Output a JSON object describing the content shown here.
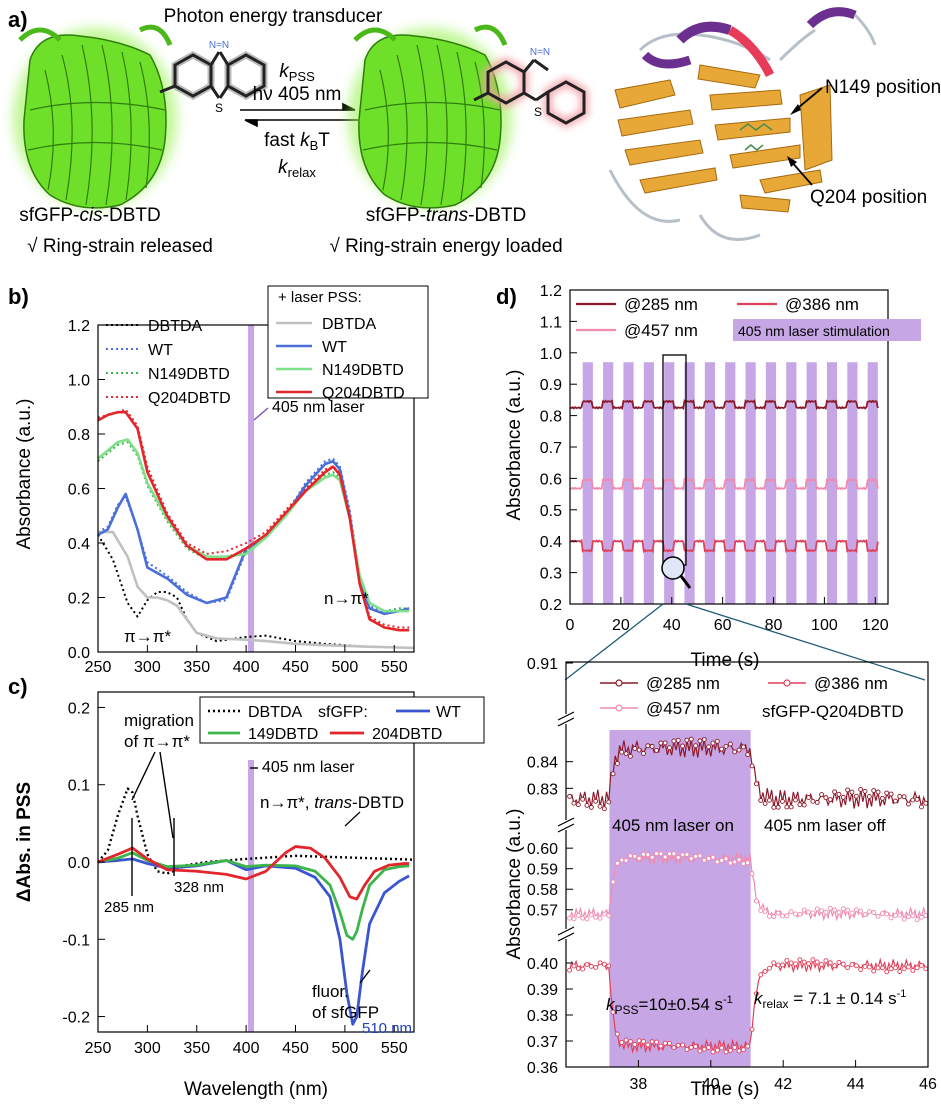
{
  "figure": {
    "panels": {
      "a": "a)",
      "b": "b)",
      "c": "c)",
      "d": "d)"
    },
    "panel_a": {
      "title": "Photon energy transducer",
      "k_pss": "k",
      "k_pss_sub": "PSS",
      "hv": "hν 405 nm",
      "fast": "fast ",
      "kB": "k",
      "kB_sub": "B",
      "T": "T",
      "k_relax": "k",
      "k_relax_sub": "relax",
      "left_name_pre": "sfGFP-",
      "left_name_it": "cis",
      "left_name_post": "-DBTD",
      "right_name_pre": "sfGFP-",
      "right_name_it": "trans",
      "right_name_post": "-DBTD",
      "left_note": "√ Ring-strain released",
      "right_note": "√ Ring-strain energy loaded",
      "n149": "N149 position",
      "q204": "Q204 position",
      "atom_S": "S",
      "atom_N": "N=N"
    },
    "colors": {
      "dbtda": "#000000",
      "wt": "#4a6fd8",
      "n149": "#3cb54a",
      "q204": "#e3262c",
      "dbtda_pss": "#c0c0c0",
      "n149_pss": "#7fe08a",
      "laser": "#c7a6e6",
      "c285": "#8b1a2a",
      "c386": "#e0405a",
      "c457": "#f08ab0",
      "gfp": "#7ae52a"
    }
  },
  "chart_data": [
    {
      "id": "b",
      "type": "line",
      "xlabel": "",
      "ylabel": "Absorbance (a.u.)",
      "xlim": [
        250,
        570
      ],
      "ylim": [
        0.0,
        1.2
      ],
      "xticks": [
        250,
        300,
        350,
        400,
        450,
        500,
        550
      ],
      "yticks": [
        0.0,
        0.2,
        0.4,
        0.6,
        0.8,
        1.0,
        1.2
      ],
      "legend_dark": [
        "DBTDA",
        "WT",
        "N149DBTD",
        "Q204DBTD"
      ],
      "legend_pss_title": "+ laser  PSS:",
      "legend_pss": [
        "DBTDA",
        "WT",
        "N149DBTD",
        "Q204DBTD"
      ],
      "annotations": [
        "405 nm laser",
        "π→π*",
        "n→π*"
      ],
      "laser_nm": 405,
      "series": [
        {
          "name": "DBTDA",
          "style": "dot",
          "color": "#000000",
          "x": [
            250,
            265,
            280,
            290,
            300,
            310,
            320,
            330,
            340,
            350,
            370,
            400,
            420,
            450,
            480,
            520,
            570
          ],
          "y": [
            0.43,
            0.34,
            0.18,
            0.13,
            0.19,
            0.22,
            0.22,
            0.2,
            0.12,
            0.07,
            0.04,
            0.055,
            0.06,
            0.04,
            0.03,
            0.02,
            0.015
          ]
        },
        {
          "name": "WT",
          "style": "dot",
          "color": "#4a6fd8",
          "x": [
            250,
            260,
            270,
            278,
            290,
            300,
            320,
            340,
            360,
            380,
            400,
            420,
            440,
            460,
            480,
            488,
            495,
            505,
            515,
            525,
            540,
            555,
            565
          ],
          "y": [
            0.44,
            0.46,
            0.54,
            0.57,
            0.45,
            0.33,
            0.28,
            0.22,
            0.18,
            0.19,
            0.37,
            0.42,
            0.5,
            0.62,
            0.7,
            0.71,
            0.68,
            0.52,
            0.28,
            0.17,
            0.14,
            0.15,
            0.16
          ]
        },
        {
          "name": "N149DBTD",
          "style": "dot",
          "color": "#3cb54a",
          "x": [
            250,
            260,
            270,
            280,
            290,
            300,
            320,
            340,
            360,
            380,
            400,
            420,
            440,
            460,
            480,
            488,
            495,
            505,
            515,
            525,
            540,
            555,
            565
          ],
          "y": [
            0.7,
            0.73,
            0.76,
            0.77,
            0.72,
            0.61,
            0.48,
            0.38,
            0.34,
            0.35,
            0.37,
            0.43,
            0.51,
            0.6,
            0.65,
            0.66,
            0.64,
            0.5,
            0.28,
            0.18,
            0.15,
            0.16,
            0.16
          ]
        },
        {
          "name": "Q204DBTD",
          "style": "dot",
          "color": "#e3262c",
          "x": [
            250,
            260,
            270,
            278,
            290,
            300,
            320,
            340,
            360,
            380,
            400,
            420,
            440,
            460,
            480,
            488,
            495,
            505,
            515,
            525,
            540,
            555,
            565
          ],
          "y": [
            0.86,
            0.87,
            0.88,
            0.89,
            0.83,
            0.68,
            0.51,
            0.4,
            0.36,
            0.37,
            0.4,
            0.44,
            0.52,
            0.6,
            0.67,
            0.68,
            0.66,
            0.5,
            0.26,
            0.13,
            0.1,
            0.09,
            0.09
          ]
        },
        {
          "name": "DBTDA",
          "style": "solid",
          "color": "#c0c0c0",
          "x": [
            250,
            265,
            280,
            290,
            300,
            310,
            320,
            330,
            340,
            350,
            370,
            400,
            420,
            450,
            480,
            520,
            570
          ],
          "y": [
            0.44,
            0.44,
            0.35,
            0.24,
            0.2,
            0.2,
            0.19,
            0.17,
            0.12,
            0.07,
            0.05,
            0.045,
            0.04,
            0.03,
            0.025,
            0.02,
            0.015
          ]
        },
        {
          "name": "WT",
          "style": "solid",
          "color": "#4a6fd8",
          "x": [
            250,
            260,
            270,
            278,
            290,
            300,
            320,
            340,
            360,
            380,
            400,
            420,
            440,
            460,
            480,
            488,
            495,
            505,
            515,
            525,
            540,
            555,
            565
          ],
          "y": [
            0.43,
            0.45,
            0.53,
            0.58,
            0.45,
            0.31,
            0.27,
            0.21,
            0.18,
            0.2,
            0.38,
            0.42,
            0.5,
            0.61,
            0.69,
            0.7,
            0.67,
            0.5,
            0.26,
            0.16,
            0.14,
            0.15,
            0.16
          ]
        },
        {
          "name": "N149DBTD",
          "style": "solid",
          "color": "#7fe08a",
          "x": [
            250,
            260,
            270,
            280,
            290,
            300,
            320,
            340,
            360,
            380,
            400,
            420,
            440,
            460,
            480,
            488,
            495,
            505,
            515,
            525,
            540,
            555,
            565
          ],
          "y": [
            0.71,
            0.74,
            0.77,
            0.78,
            0.73,
            0.62,
            0.49,
            0.39,
            0.35,
            0.35,
            0.36,
            0.42,
            0.5,
            0.59,
            0.64,
            0.65,
            0.63,
            0.49,
            0.28,
            0.18,
            0.15,
            0.15,
            0.15
          ]
        },
        {
          "name": "Q204DBTD",
          "style": "solid",
          "color": "#e3262c",
          "x": [
            250,
            260,
            270,
            278,
            290,
            300,
            320,
            340,
            360,
            380,
            400,
            420,
            440,
            460,
            480,
            488,
            495,
            505,
            515,
            525,
            540,
            555,
            565
          ],
          "y": [
            0.85,
            0.87,
            0.88,
            0.88,
            0.82,
            0.66,
            0.5,
            0.39,
            0.34,
            0.34,
            0.38,
            0.43,
            0.51,
            0.59,
            0.66,
            0.68,
            0.65,
            0.49,
            0.25,
            0.12,
            0.09,
            0.08,
            0.08
          ]
        }
      ]
    },
    {
      "id": "c",
      "type": "line",
      "xlabel": "Wavelength (nm)",
      "ylabel": "ΔAbs. in PSS",
      "xlim": [
        250,
        570
      ],
      "ylim": [
        -0.22,
        0.22
      ],
      "xticks": [
        250,
        300,
        350,
        400,
        450,
        500,
        550
      ],
      "yticks": [
        -0.2,
        -0.1,
        0.0,
        0.1,
        0.2
      ],
      "legend": [
        "DBTDA",
        "sfGFP:",
        "WT",
        "149DBTD",
        "204DBTD"
      ],
      "annotations": [
        "migration",
        "of π→π*",
        "405 nm laser",
        "n→π*, trans-DBTD",
        "285 nm",
        "328 nm",
        "fluor.",
        "of sfGFP",
        "510 nm"
      ],
      "laser_nm": 405,
      "series": [
        {
          "name": "DBTDA",
          "style": "dot",
          "color": "#000000",
          "x": [
            250,
            260,
            270,
            280,
            285,
            290,
            300,
            310,
            320,
            330,
            340,
            360,
            380,
            400,
            450,
            500,
            570
          ],
          "y": [
            0.0,
            0.015,
            0.06,
            0.095,
            0.09,
            0.06,
            0.01,
            -0.012,
            -0.015,
            -0.01,
            -0.004,
            0.0,
            0.002,
            0.004,
            0.008,
            0.006,
            0.003
          ]
        },
        {
          "name": "WT",
          "style": "solid",
          "color": "#3a55d0",
          "x": [
            250,
            270,
            285,
            300,
            320,
            350,
            380,
            400,
            420,
            450,
            470,
            485,
            495,
            502,
            508,
            512,
            518,
            525,
            540,
            555,
            565
          ],
          "y": [
            0.0,
            0.002,
            0.004,
            -0.002,
            -0.008,
            -0.005,
            0.002,
            -0.01,
            -0.005,
            -0.008,
            -0.02,
            -0.045,
            -0.1,
            -0.17,
            -0.21,
            -0.2,
            -0.14,
            -0.08,
            -0.04,
            -0.025,
            -0.018
          ]
        },
        {
          "name": "149DBTD",
          "style": "solid",
          "color": "#3cb54a",
          "x": [
            250,
            270,
            285,
            300,
            320,
            350,
            380,
            400,
            420,
            450,
            470,
            485,
            495,
            502,
            508,
            512,
            518,
            525,
            540,
            555,
            565
          ],
          "y": [
            0.0,
            0.005,
            0.012,
            0.002,
            -0.006,
            -0.004,
            0.002,
            -0.006,
            -0.004,
            -0.005,
            -0.012,
            -0.03,
            -0.065,
            -0.095,
            -0.1,
            -0.09,
            -0.06,
            -0.03,
            -0.01,
            -0.006,
            -0.005
          ]
        },
        {
          "name": "204DBTD",
          "style": "solid",
          "color": "#e3262c",
          "x": [
            250,
            270,
            285,
            300,
            320,
            350,
            380,
            400,
            420,
            440,
            450,
            465,
            480,
            495,
            505,
            512,
            520,
            530,
            545,
            560,
            565
          ],
          "y": [
            0.0,
            0.01,
            0.018,
            0.004,
            -0.01,
            -0.012,
            -0.016,
            -0.022,
            -0.012,
            0.012,
            0.02,
            0.018,
            0.005,
            -0.02,
            -0.045,
            -0.048,
            -0.03,
            -0.012,
            -0.004,
            -0.002,
            -0.002
          ]
        }
      ]
    },
    {
      "id": "d-top",
      "type": "line",
      "xlabel": "Time (s)",
      "ylabel": "Absorbance (a.u.)",
      "xlim": [
        0,
        125
      ],
      "ylim": [
        0.2,
        1.2
      ],
      "xticks": [
        0,
        20,
        40,
        60,
        80,
        100,
        120
      ],
      "yticks": [
        0.2,
        0.3,
        0.4,
        0.5,
        0.6,
        0.7,
        0.8,
        0.9,
        1.0,
        1.1,
        1.2
      ],
      "legend": [
        "@285 nm",
        "@386 nm",
        "@457 nm",
        "405 nm laser stimulation"
      ],
      "pulse_period_s": 8,
      "pulse_width_s": 4,
      "pulse_first_start_s": 5,
      "pulse_count": 15,
      "pulse_top": 0.97,
      "series": [
        {
          "name": "@285 nm",
          "color": "#8b1a2a",
          "off": 0.825,
          "on": 0.845
        },
        {
          "name": "@457 nm",
          "color": "#f08ab0",
          "off": 0.568,
          "on": 0.595
        },
        {
          "name": "@386 nm",
          "color": "#e0405a",
          "off": 0.4,
          "on": 0.37
        }
      ],
      "zoom_window_s": [
        37,
        45
      ]
    },
    {
      "id": "d-zoom",
      "type": "scatter",
      "xlabel": "Time (s)",
      "ylabel": "Absorbance (a.u.)",
      "xlim": [
        36,
        46
      ],
      "xticks": [
        38,
        40,
        42,
        44,
        46
      ],
      "yticks_top": [
        0.91
      ],
      "yticks_285": [
        0.83,
        0.84
      ],
      "yticks_457": [
        0.57,
        0.58,
        0.59,
        0.6
      ],
      "yticks_386": [
        0.36,
        0.37,
        0.38,
        0.39,
        0.4
      ],
      "legend": [
        "@285 nm",
        "@386 nm",
        "@457 nm",
        "sfGFP-Q204DBTD"
      ],
      "annotations": [
        "405 nm laser on",
        "405 nm laser off",
        "kPSS=10±0.54 s⁻¹",
        "krelax = 7.1 ± 0.14 s⁻¹"
      ],
      "kpss_text": "=10±0.54 s",
      "krelax_text": " = 7.1 ± 0.14 s",
      "minus1": "-1",
      "laser_on_s": [
        37.2,
        41.1
      ],
      "series": [
        {
          "name": "@285 nm",
          "color": "#8b1a2a",
          "off": 0.826,
          "on": 0.845
        },
        {
          "name": "@457 nm",
          "color": "#f08ab0",
          "off": 0.568,
          "on": 0.595
        },
        {
          "name": "@386 nm",
          "color": "#e0405a",
          "off": 0.399,
          "on": 0.368
        }
      ]
    }
  ]
}
